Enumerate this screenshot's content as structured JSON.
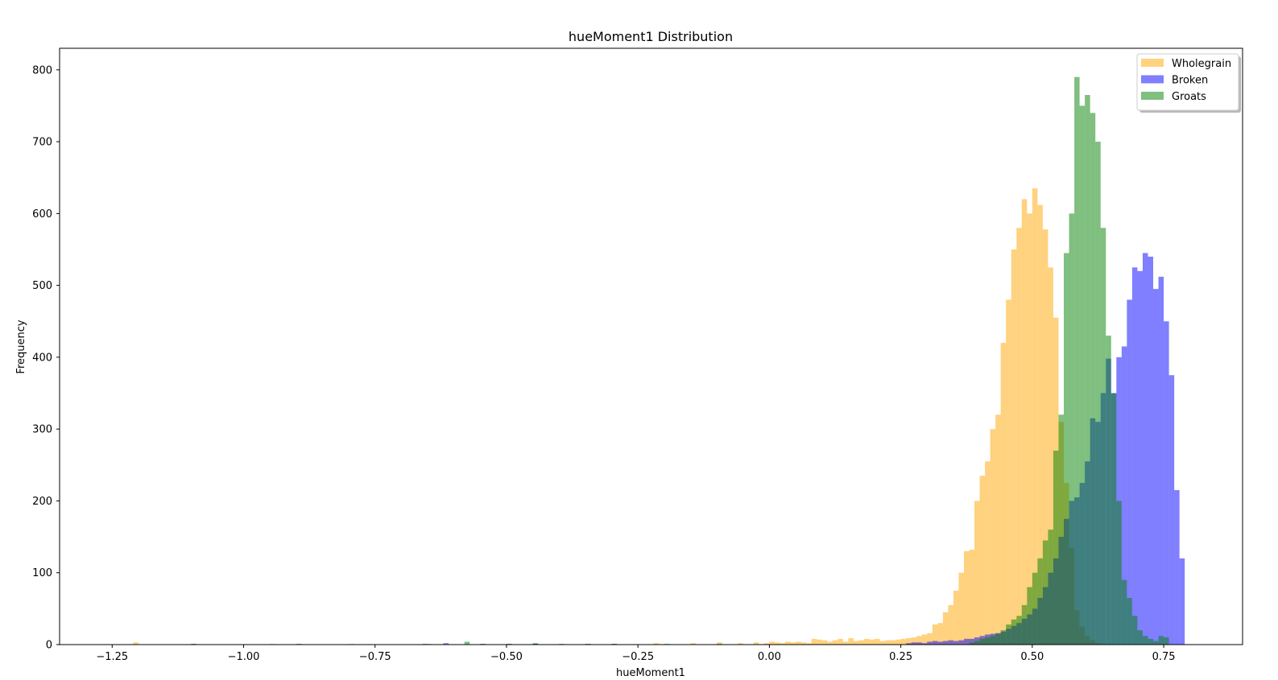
{
  "chart_data": {
    "type": "histogram",
    "title": "hueMoment1 Distribution",
    "xlabel": "hueMoment1",
    "ylabel": "Frequency",
    "xlim": [
      -1.35,
      0.9
    ],
    "ylim": [
      0,
      830
    ],
    "xticks": [
      -1.25,
      -1.0,
      -0.75,
      -0.5,
      -0.25,
      0.0,
      0.25,
      0.5,
      0.75
    ],
    "xtick_labels": [
      "−1.25",
      "−1.00",
      "−0.75",
      "−0.50",
      "−0.25",
      "0.00",
      "0.25",
      "0.50",
      "0.75"
    ],
    "yticks": [
      0,
      100,
      200,
      300,
      400,
      500,
      600,
      700,
      800
    ],
    "ytick_labels": [
      "0",
      "100",
      "200",
      "300",
      "400",
      "500",
      "600",
      "700",
      "800"
    ],
    "grid": false,
    "legend_position": "top-right",
    "bin_width": 0.01,
    "alpha": 0.5,
    "series": [
      {
        "name": "Wholegrain",
        "color": "#ffa500",
        "x": [
          -1.21,
          -1.1,
          -0.95,
          -0.8,
          -0.65,
          -0.55,
          -0.45,
          -0.35,
          -0.22,
          -0.15,
          -0.1,
          -0.06,
          -0.03,
          -0.01,
          0.0,
          0.01,
          0.02,
          0.03,
          0.04,
          0.05,
          0.06,
          0.07,
          0.08,
          0.09,
          0.1,
          0.11,
          0.12,
          0.13,
          0.14,
          0.15,
          0.16,
          0.17,
          0.18,
          0.19,
          0.2,
          0.21,
          0.22,
          0.23,
          0.24,
          0.25,
          0.26,
          0.27,
          0.28,
          0.29,
          0.3,
          0.31,
          0.32,
          0.33,
          0.34,
          0.35,
          0.36,
          0.37,
          0.38,
          0.39,
          0.4,
          0.41,
          0.42,
          0.43,
          0.44,
          0.45,
          0.46,
          0.47,
          0.48,
          0.49,
          0.5,
          0.51,
          0.52,
          0.53,
          0.54,
          0.55,
          0.56,
          0.57,
          0.58,
          0.59,
          0.6,
          0.61,
          0.62,
          0.63
        ],
        "values": [
          3,
          1,
          1,
          1,
          1,
          1,
          1,
          1,
          2,
          2,
          3,
          2,
          3,
          2,
          4,
          3,
          2,
          4,
          3,
          4,
          3,
          2,
          8,
          7,
          6,
          4,
          6,
          8,
          4,
          9,
          5,
          6,
          8,
          7,
          8,
          5,
          6,
          6,
          7,
          8,
          9,
          10,
          12,
          14,
          16,
          28,
          30,
          45,
          55,
          75,
          100,
          130,
          132,
          200,
          235,
          255,
          300,
          320,
          420,
          480,
          550,
          580,
          620,
          600,
          635,
          612,
          578,
          525,
          455,
          310,
          225,
          135,
          48,
          25,
          12,
          6,
          2,
          1
        ]
      },
      {
        "name": "Broken",
        "color": "#0000ff",
        "x": [
          -1.1,
          -0.9,
          -0.66,
          -0.62,
          -0.55,
          -0.5,
          -0.45,
          -0.35,
          -0.3,
          0.26,
          0.27,
          0.28,
          0.29,
          0.3,
          0.31,
          0.32,
          0.33,
          0.34,
          0.35,
          0.36,
          0.37,
          0.38,
          0.39,
          0.4,
          0.41,
          0.42,
          0.43,
          0.44,
          0.45,
          0.46,
          0.47,
          0.48,
          0.49,
          0.5,
          0.51,
          0.52,
          0.53,
          0.54,
          0.55,
          0.56,
          0.57,
          0.58,
          0.59,
          0.6,
          0.61,
          0.62,
          0.63,
          0.64,
          0.65,
          0.66,
          0.67,
          0.68,
          0.69,
          0.7,
          0.71,
          0.72,
          0.73,
          0.74,
          0.75,
          0.76,
          0.77,
          0.78
        ],
        "values": [
          1,
          1,
          1,
          2,
          1,
          1,
          1,
          1,
          1,
          2,
          3,
          3,
          2,
          4,
          5,
          4,
          5,
          6,
          5,
          6,
          8,
          8,
          10,
          12,
          14,
          15,
          16,
          18,
          22,
          26,
          30,
          36,
          42,
          50,
          65,
          80,
          100,
          120,
          150,
          175,
          200,
          205,
          225,
          255,
          315,
          310,
          350,
          398,
          350,
          400,
          415,
          480,
          525,
          520,
          545,
          540,
          495,
          512,
          450,
          375,
          215,
          120
        ]
      },
      {
        "name": "Groats",
        "color": "#008000",
        "x": [
          -0.58,
          -0.5,
          -0.45,
          -0.4,
          -0.3,
          -0.2,
          -0.1,
          0.38,
          0.39,
          0.4,
          0.41,
          0.42,
          0.43,
          0.44,
          0.45,
          0.46,
          0.47,
          0.48,
          0.49,
          0.5,
          0.51,
          0.52,
          0.53,
          0.54,
          0.55,
          0.56,
          0.57,
          0.58,
          0.59,
          0.6,
          0.61,
          0.62,
          0.63,
          0.64,
          0.65,
          0.66,
          0.67,
          0.68,
          0.69,
          0.7,
          0.71,
          0.72,
          0.73,
          0.74,
          0.75
        ],
        "values": [
          4,
          1,
          2,
          1,
          1,
          1,
          1,
          3,
          5,
          8,
          10,
          12,
          15,
          20,
          28,
          35,
          40,
          55,
          80,
          100,
          120,
          145,
          160,
          270,
          320,
          545,
          600,
          790,
          750,
          765,
          740,
          700,
          580,
          430,
          350,
          200,
          90,
          65,
          40,
          20,
          12,
          8,
          5,
          12,
          10
        ]
      }
    ]
  }
}
